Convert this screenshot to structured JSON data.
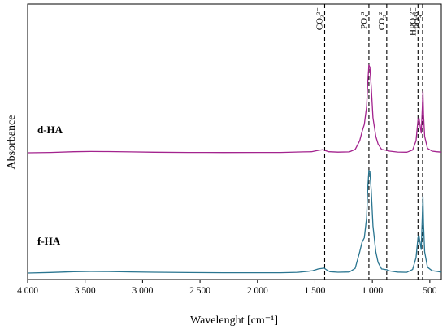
{
  "chart_data": {
    "type": "line",
    "xlabel": "Wavelenght [cm⁻¹]",
    "ylabel": "Absorbance",
    "xlim": [
      4000,
      400
    ],
    "x_reversed": true,
    "x_ticks": [
      4000,
      3500,
      3000,
      2500,
      2000,
      1500,
      1000,
      500
    ],
    "x_tick_labels": [
      "4 000",
      "3 500",
      "3 000",
      "2 500",
      "2 000",
      "1 500",
      "1 000",
      "500"
    ],
    "y_tick_labels": [],
    "grid": false,
    "legend": "none",
    "series": [
      {
        "name": "d-HA",
        "color": "#a3238e",
        "points": [
          [
            4000,
            0.0
          ],
          [
            3800,
            0.003
          ],
          [
            3600,
            0.01
          ],
          [
            3450,
            0.012
          ],
          [
            3300,
            0.011
          ],
          [
            3100,
            0.008
          ],
          [
            2900,
            0.005
          ],
          [
            2600,
            0.003
          ],
          [
            2300,
            0.002
          ],
          [
            2000,
            0.003
          ],
          [
            1800,
            0.003
          ],
          [
            1600,
            0.008
          ],
          [
            1530,
            0.01
          ],
          [
            1470,
            0.022
          ],
          [
            1430,
            0.028
          ],
          [
            1410,
            0.02
          ],
          [
            1380,
            0.01
          ],
          [
            1300,
            0.006
          ],
          [
            1200,
            0.008
          ],
          [
            1150,
            0.03
          ],
          [
            1110,
            0.11
          ],
          [
            1090,
            0.19
          ],
          [
            1070,
            0.26
          ],
          [
            1050,
            0.42
          ],
          [
            1040,
            0.64
          ],
          [
            1030,
            0.8
          ],
          [
            1022,
            0.78
          ],
          [
            1010,
            0.6
          ],
          [
            995,
            0.32
          ],
          [
            970,
            0.15
          ],
          [
            950,
            0.08
          ],
          [
            920,
            0.03
          ],
          [
            875,
            0.022
          ],
          [
            850,
            0.015
          ],
          [
            780,
            0.007
          ],
          [
            700,
            0.005
          ],
          [
            650,
            0.025
          ],
          [
            620,
            0.11
          ],
          [
            603,
            0.3
          ],
          [
            595,
            0.32
          ],
          [
            575,
            0.18
          ],
          [
            565,
            0.42
          ],
          [
            560,
            0.56
          ],
          [
            555,
            0.35
          ],
          [
            545,
            0.15
          ],
          [
            520,
            0.04
          ],
          [
            480,
            0.015
          ],
          [
            440,
            0.01
          ],
          [
            400,
            0.006
          ]
        ]
      },
      {
        "name": "f-HA",
        "color": "#2a7590",
        "points": [
          [
            4000,
            0.0
          ],
          [
            3800,
            0.005
          ],
          [
            3600,
            0.012
          ],
          [
            3450,
            0.014
          ],
          [
            3300,
            0.013
          ],
          [
            3100,
            0.01
          ],
          [
            2900,
            0.007
          ],
          [
            2600,
            0.004
          ],
          [
            2300,
            0.003
          ],
          [
            2000,
            0.003
          ],
          [
            1800,
            0.003
          ],
          [
            1650,
            0.006
          ],
          [
            1560,
            0.015
          ],
          [
            1520,
            0.02
          ],
          [
            1470,
            0.035
          ],
          [
            1420,
            0.042
          ],
          [
            1400,
            0.028
          ],
          [
            1370,
            0.012
          ],
          [
            1300,
            0.007
          ],
          [
            1200,
            0.009
          ],
          [
            1150,
            0.04
          ],
          [
            1110,
            0.18
          ],
          [
            1090,
            0.26
          ],
          [
            1070,
            0.3
          ],
          [
            1050,
            0.47
          ],
          [
            1040,
            0.72
          ],
          [
            1030,
            0.87
          ],
          [
            1022,
            0.86
          ],
          [
            1010,
            0.7
          ],
          [
            995,
            0.4
          ],
          [
            970,
            0.18
          ],
          [
            950,
            0.09
          ],
          [
            920,
            0.035
          ],
          [
            875,
            0.028
          ],
          [
            850,
            0.018
          ],
          [
            780,
            0.008
          ],
          [
            700,
            0.006
          ],
          [
            650,
            0.03
          ],
          [
            620,
            0.13
          ],
          [
            603,
            0.3
          ],
          [
            595,
            0.32
          ],
          [
            575,
            0.2
          ],
          [
            565,
            0.5
          ],
          [
            560,
            0.65
          ],
          [
            555,
            0.42
          ],
          [
            545,
            0.18
          ],
          [
            520,
            0.05
          ],
          [
            480,
            0.02
          ],
          [
            440,
            0.015
          ],
          [
            400,
            0.008
          ]
        ]
      }
    ],
    "sample_labels": [
      {
        "name": "d-HA",
        "text": "d-HA"
      },
      {
        "name": "f-HA",
        "text": "f-HA"
      }
    ],
    "reference_lines": [
      {
        "name": "co3-1415",
        "x": 1415,
        "label": "CO₃²⁻"
      },
      {
        "name": "po4-1030",
        "x": 1030,
        "label": "PO₄³⁻"
      },
      {
        "name": "co3-875",
        "x": 875,
        "label": "CO₃²⁻"
      },
      {
        "name": "hpo4-603",
        "x": 603,
        "label": "HPO₄²⁻"
      },
      {
        "name": "po4-563",
        "x": 563,
        "label": "PO₄³⁻"
      }
    ]
  }
}
